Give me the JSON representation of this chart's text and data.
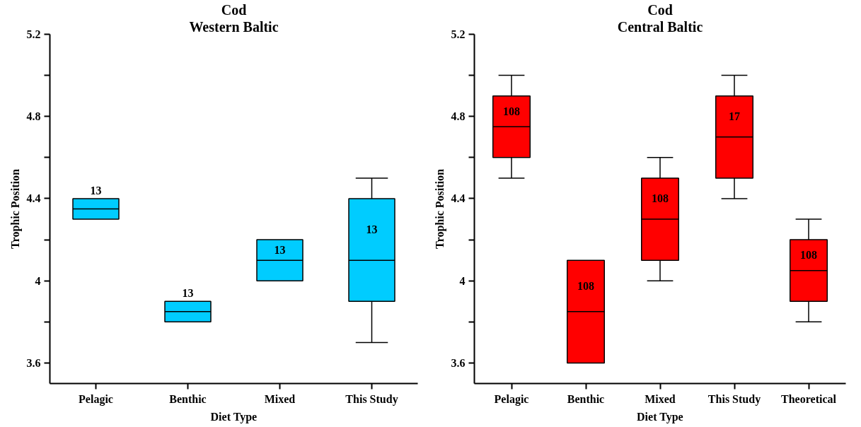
{
  "chart_data": [
    {
      "type": "box",
      "title": "Cod",
      "subtitle": "Western Baltic",
      "xlabel": "Diet Type",
      "ylabel": "Trophic Position",
      "categories": [
        "Pelagic",
        "Benthic",
        "Mixed",
        "This Study"
      ],
      "series": [
        {
          "color": "#00ccff",
          "boxes": [
            {
              "low": 4.3,
              "q1": 4.3,
              "median": 4.35,
              "q3": 4.4,
              "high": 4.4
            },
            {
              "low": 3.8,
              "q1": 3.8,
              "median": 3.85,
              "q3": 3.9,
              "high": 3.9
            },
            {
              "low": 4.0,
              "q1": 4.0,
              "median": 4.1,
              "q3": 4.2,
              "high": 4.2
            },
            {
              "low": 3.7,
              "q1": 3.9,
              "median": 4.1,
              "q3": 4.4,
              "high": 4.5
            }
          ]
        }
      ],
      "ylim": [
        3.5,
        5.2
      ],
      "yticks": [
        3.6,
        {
          "value": 3.8,
          "label": null
        },
        4,
        {
          "value": 4.2,
          "label": null
        },
        4.4,
        {
          "value": 4.6,
          "label": null
        },
        4.8,
        {
          "value": 5.0,
          "label": null
        },
        5.2
      ],
      "annotations": [
        "13",
        "13",
        "13",
        "13"
      ],
      "grid": false
    },
    {
      "type": "box",
      "title": "Cod",
      "subtitle": "Central Baltic",
      "xlabel": "Diet Type",
      "ylabel": "Trophic Position",
      "categories": [
        "Pelagic",
        "Benthic",
        "Mixed",
        "This Study",
        "Theoretical"
      ],
      "series": [
        {
          "color": "#ff0000",
          "boxes": [
            {
              "low": 4.5,
              "q1": 4.6,
              "median": 4.75,
              "q3": 4.9,
              "high": 5.0
            },
            {
              "low": 3.6,
              "q1": 3.6,
              "median": 3.85,
              "q3": 4.1,
              "high": 4.1
            },
            {
              "low": 4.0,
              "q1": 4.1,
              "median": 4.3,
              "q3": 4.5,
              "high": 4.6
            },
            {
              "low": 4.4,
              "q1": 4.5,
              "median": 4.7,
              "q3": 4.9,
              "high": 5.0
            },
            {
              "low": 3.8,
              "q1": 3.9,
              "median": 4.05,
              "q3": 4.2,
              "high": 4.3
            }
          ]
        }
      ],
      "ylim": [
        3.5,
        5.2
      ],
      "yticks": [
        3.6,
        {
          "value": 3.8,
          "label": null
        },
        4,
        {
          "value": 4.2,
          "label": null
        },
        4.4,
        {
          "value": 4.6,
          "label": null
        },
        4.8,
        {
          "value": 5.0,
          "label": null
        },
        5.2
      ],
      "annotations": [
        "108",
        "108",
        "108",
        "17",
        "108"
      ],
      "grid": false
    }
  ]
}
